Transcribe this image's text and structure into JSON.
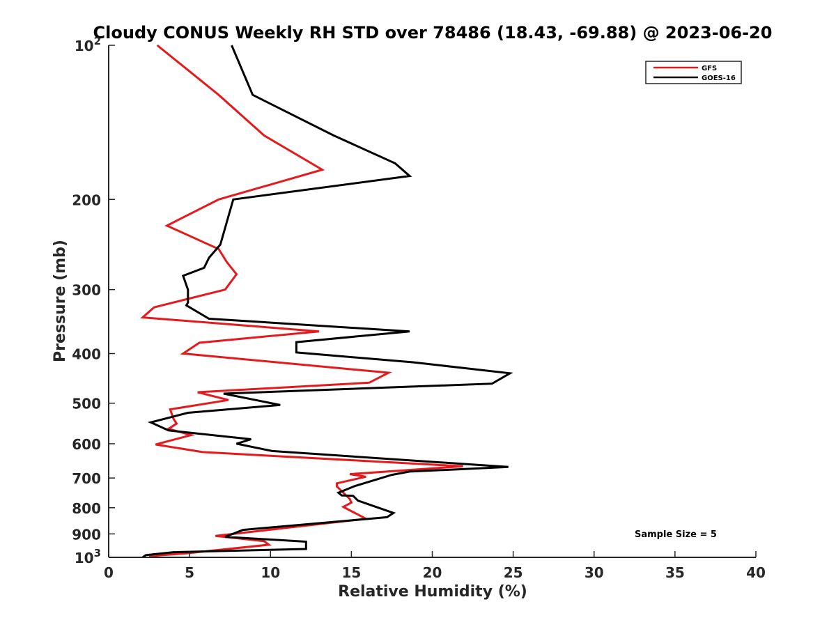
{
  "chart_data": {
    "type": "line",
    "title": "Cloudy CONUS Weekly RH STD over 78486 (18.43, -69.88) @ 2023-06-20",
    "xlabel": "Relative Humidity (%)",
    "ylabel": "Pressure (mb)",
    "xlim": [
      0,
      40
    ],
    "ylim": [
      100,
      1000
    ],
    "y_scale": "log",
    "y_reversed": true,
    "x_ticks": [
      "0",
      "5",
      "10",
      "15",
      "20",
      "25",
      "30",
      "35",
      "40"
    ],
    "y_ticks": [
      {
        "value": 100,
        "base": "10",
        "exp": "2"
      },
      {
        "value": 200,
        "label": "200"
      },
      {
        "value": 300,
        "label": "300"
      },
      {
        "value": 400,
        "label": "400"
      },
      {
        "value": 500,
        "label": "500"
      },
      {
        "value": 600,
        "label": "600"
      },
      {
        "value": 700,
        "label": "700"
      },
      {
        "value": 800,
        "label": "800"
      },
      {
        "value": 900,
        "label": "900"
      },
      {
        "value": 1000,
        "base": "10",
        "exp": "3"
      }
    ],
    "legend_position": "top-right",
    "annotation": "Sample Size = 5",
    "series": [
      {
        "name": "GFS",
        "color": "#e41a1c",
        "points": [
          [
            3.0,
            100
          ],
          [
            6.8,
            125
          ],
          [
            9.6,
            150
          ],
          [
            13.2,
            175
          ],
          [
            6.8,
            200
          ],
          [
            3.6,
            225
          ],
          [
            6.8,
            250
          ],
          [
            7.3,
            265
          ],
          [
            7.9,
            280
          ],
          [
            7.2,
            300
          ],
          [
            2.8,
            325
          ],
          [
            2.1,
            340
          ],
          [
            13.0,
            362
          ],
          [
            5.6,
            381
          ],
          [
            4.6,
            400
          ],
          [
            17.3,
            436
          ],
          [
            16.1,
            456
          ],
          [
            5.5,
            476
          ],
          [
            7.4,
            493
          ],
          [
            3.8,
            514
          ],
          [
            4.0,
            536
          ],
          [
            4.2,
            548
          ],
          [
            3.7,
            561
          ],
          [
            5.1,
            577
          ],
          [
            2.9,
            602
          ],
          [
            5.8,
            623
          ],
          [
            21.9,
            664
          ],
          [
            14.9,
            688
          ],
          [
            15.9,
            696
          ],
          [
            14.1,
            717
          ],
          [
            14.1,
            727
          ],
          [
            14.9,
            769
          ],
          [
            15.0,
            782
          ],
          [
            14.5,
            797
          ],
          [
            15.9,
            841
          ],
          [
            6.6,
            908
          ],
          [
            9.6,
            930
          ],
          [
            9.9,
            945
          ],
          [
            4.8,
            982
          ],
          [
            3.0,
            992
          ],
          [
            2.5,
            998
          ]
        ]
      },
      {
        "name": "GOES-16",
        "color": "#000000",
        "points": [
          [
            7.6,
            100
          ],
          [
            8.9,
            125
          ],
          [
            13.9,
            150
          ],
          [
            17.7,
            170
          ],
          [
            18.6,
            180
          ],
          [
            7.7,
            200
          ],
          [
            6.9,
            245
          ],
          [
            6.2,
            260
          ],
          [
            5.9,
            272
          ],
          [
            4.6,
            282
          ],
          [
            4.9,
            300
          ],
          [
            4.9,
            318
          ],
          [
            4.8,
            322
          ],
          [
            6.2,
            342
          ],
          [
            18.6,
            362
          ],
          [
            11.6,
            380
          ],
          [
            11.6,
            398
          ],
          [
            18.8,
            416
          ],
          [
            24.8,
            437
          ],
          [
            23.7,
            458
          ],
          [
            7.1,
            479
          ],
          [
            10.6,
            504
          ],
          [
            4.9,
            522
          ],
          [
            2.6,
            545
          ],
          [
            3.7,
            565
          ],
          [
            8.8,
            588
          ],
          [
            7.9,
            600
          ],
          [
            10.1,
            620
          ],
          [
            24.7,
            666
          ],
          [
            18.6,
            680
          ],
          [
            17.5,
            690
          ],
          [
            15.2,
            726
          ],
          [
            14.2,
            748
          ],
          [
            14.4,
            757
          ],
          [
            15.1,
            758
          ],
          [
            15.4,
            775
          ],
          [
            17.6,
            819
          ],
          [
            17.2,
            835
          ],
          [
            8.3,
            884
          ],
          [
            7.2,
            912
          ],
          [
            12.2,
            932
          ],
          [
            12.2,
            963
          ],
          [
            4.0,
            977
          ],
          [
            2.3,
            990
          ],
          [
            2.1,
            1000
          ]
        ]
      }
    ]
  }
}
